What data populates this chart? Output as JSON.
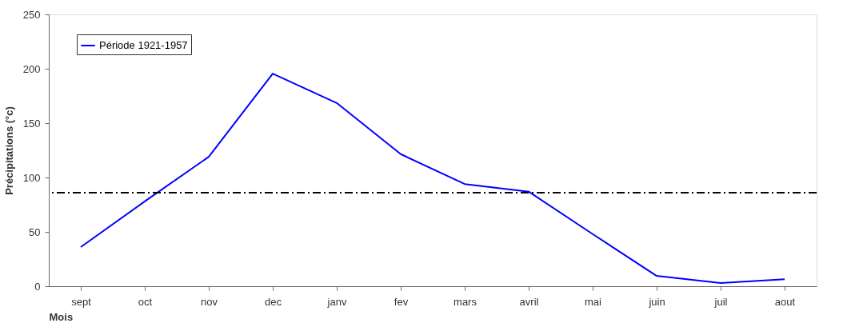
{
  "chart_data": {
    "type": "line",
    "xlabel": "Mois",
    "ylabel": "Précipitations (°c)",
    "categories": [
      "sept",
      "oct",
      "nov",
      "dec",
      "janv",
      "fev",
      "mars",
      "avril",
      "mai",
      "juin",
      "juil",
      "aout"
    ],
    "series": [
      {
        "name": "Période 1921-1957",
        "color": "#0000ff",
        "values": [
          36,
          78,
          119,
          195.5,
          168.5,
          121.5,
          94,
          87,
          48,
          9.5,
          3,
          6.5
        ]
      }
    ],
    "ylim": [
      0,
      250
    ],
    "yticks": [
      0,
      50,
      100,
      150,
      200,
      250
    ],
    "ref_lines": [
      {
        "axis": "y",
        "value": 86,
        "label": null,
        "color": "#000000",
        "line_style": "dashdot"
      }
    ],
    "grid": false,
    "legend": "top left",
    "marker": "none",
    "line_style": "solid"
  }
}
